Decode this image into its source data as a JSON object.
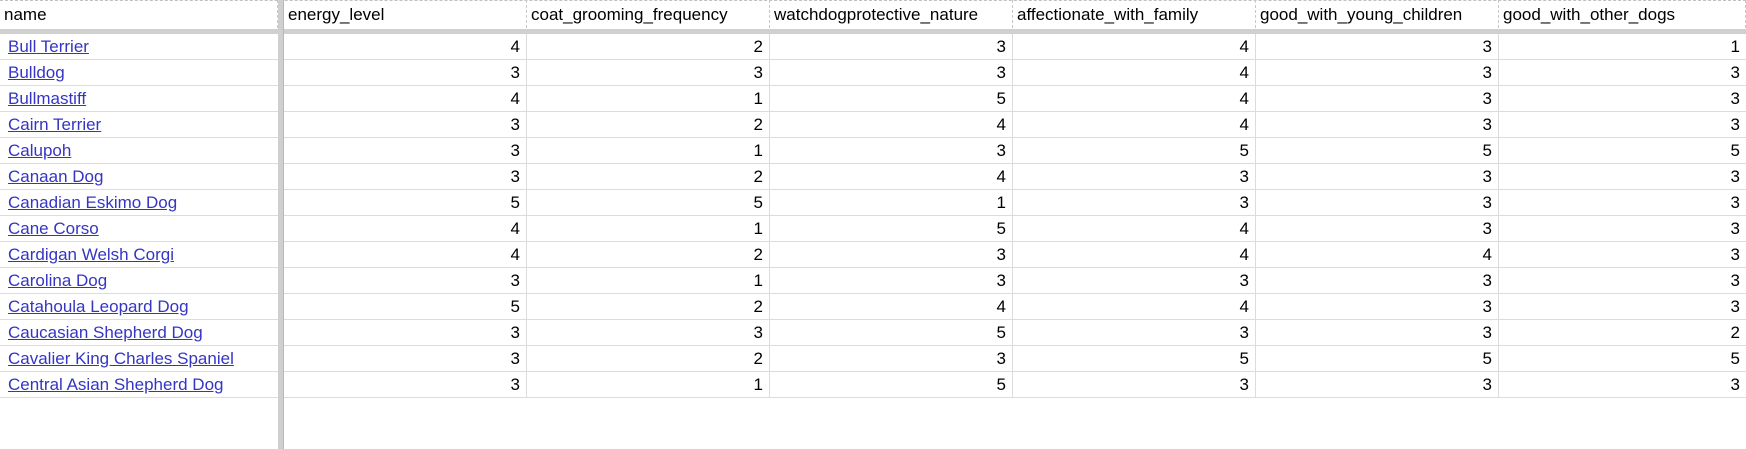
{
  "columns": [
    "name",
    "energy_level",
    "coat_grooming_frequency",
    "watchdogprotective_nature",
    "affectionate_with_family",
    "good_with_young_children",
    "good_with_other_dogs"
  ],
  "rows": [
    {
      "name": "Bull Terrier",
      "v": [
        "4",
        "2",
        "3",
        "4",
        "3",
        "1"
      ]
    },
    {
      "name": "Bulldog",
      "v": [
        "3",
        "3",
        "3",
        "4",
        "3",
        "3"
      ]
    },
    {
      "name": "Bullmastiff",
      "v": [
        "4",
        "1",
        "5",
        "4",
        "3",
        "3"
      ]
    },
    {
      "name": "Cairn Terrier",
      "v": [
        "3",
        "2",
        "4",
        "4",
        "3",
        "3"
      ]
    },
    {
      "name": "Calupoh",
      "v": [
        "3",
        "1",
        "3",
        "5",
        "5",
        "5"
      ]
    },
    {
      "name": "Canaan Dog",
      "v": [
        "3",
        "2",
        "4",
        "3",
        "3",
        "3"
      ]
    },
    {
      "name": "Canadian Eskimo Dog",
      "v": [
        "5",
        "5",
        "1",
        "3",
        "3",
        "3"
      ]
    },
    {
      "name": "Cane Corso",
      "v": [
        "4",
        "1",
        "5",
        "4",
        "3",
        "3"
      ]
    },
    {
      "name": "Cardigan Welsh Corgi",
      "v": [
        "4",
        "2",
        "3",
        "4",
        "4",
        "3"
      ]
    },
    {
      "name": "Carolina Dog",
      "v": [
        "3",
        "1",
        "3",
        "3",
        "3",
        "3"
      ]
    },
    {
      "name": "Catahoula Leopard Dog",
      "v": [
        "5",
        "2",
        "4",
        "4",
        "3",
        "3"
      ]
    },
    {
      "name": "Caucasian Shepherd Dog",
      "v": [
        "3",
        "3",
        "5",
        "3",
        "3",
        "2"
      ]
    },
    {
      "name": "Cavalier King Charles Spaniel",
      "v": [
        "3",
        "2",
        "3",
        "5",
        "5",
        "5"
      ]
    },
    {
      "name": "Central Asian Shepherd Dog",
      "v": [
        "3",
        "1",
        "5",
        "3",
        "3",
        "3"
      ]
    }
  ]
}
